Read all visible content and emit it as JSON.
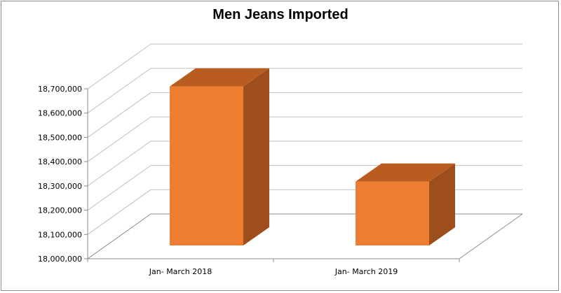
{
  "chart_data": {
    "type": "bar",
    "title": "Men Jeans Imported",
    "xlabel": "",
    "ylabel": "",
    "categories": [
      "Jan- March 2018",
      "Jan- March 2019"
    ],
    "series": [
      {
        "values": [
          18655000,
          18263000
        ]
      }
    ],
    "ylim": [
      18000000,
      18700000
    ],
    "yticks": [
      18000000,
      18100000,
      18200000,
      18300000,
      18400000,
      18500000,
      18600000,
      18700000
    ],
    "ytick_labels": [
      "18,000,000",
      "18,100,000",
      "18,200,000",
      "18,300,000",
      "18,400,000",
      "18,500,000",
      "18,600,000",
      "18,700,000"
    ],
    "grid": true,
    "three_d": true,
    "legend": "none",
    "colors": {
      "front": "#ED7D31",
      "top": "#B85C1F",
      "side": "#9E4E1C",
      "grid": "#BFBFBF",
      "axis": "#8C8C8C"
    }
  }
}
